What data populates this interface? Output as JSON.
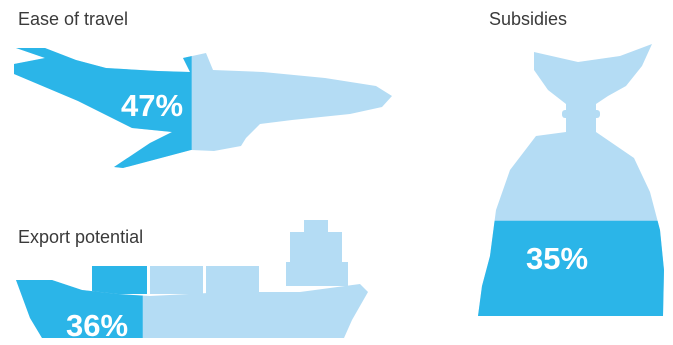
{
  "colors": {
    "fill": "#2bb5e8",
    "track": "#b4dcf4",
    "label": "#3a3a3a",
    "value_text": "#ffffff",
    "background": "#ffffff"
  },
  "chart_data": {
    "type": "bar",
    "categories": [
      "Ease of travel",
      "Export potential",
      "Subsidies"
    ],
    "values": [
      47,
      36,
      35
    ],
    "unit": "%",
    "ylim": [
      0,
      100
    ],
    "value_labels": [
      "47%",
      "36%",
      "35%"
    ],
    "icons": [
      "airplane-icon",
      "cargo-ship-icon",
      "money-bag-icon"
    ]
  }
}
